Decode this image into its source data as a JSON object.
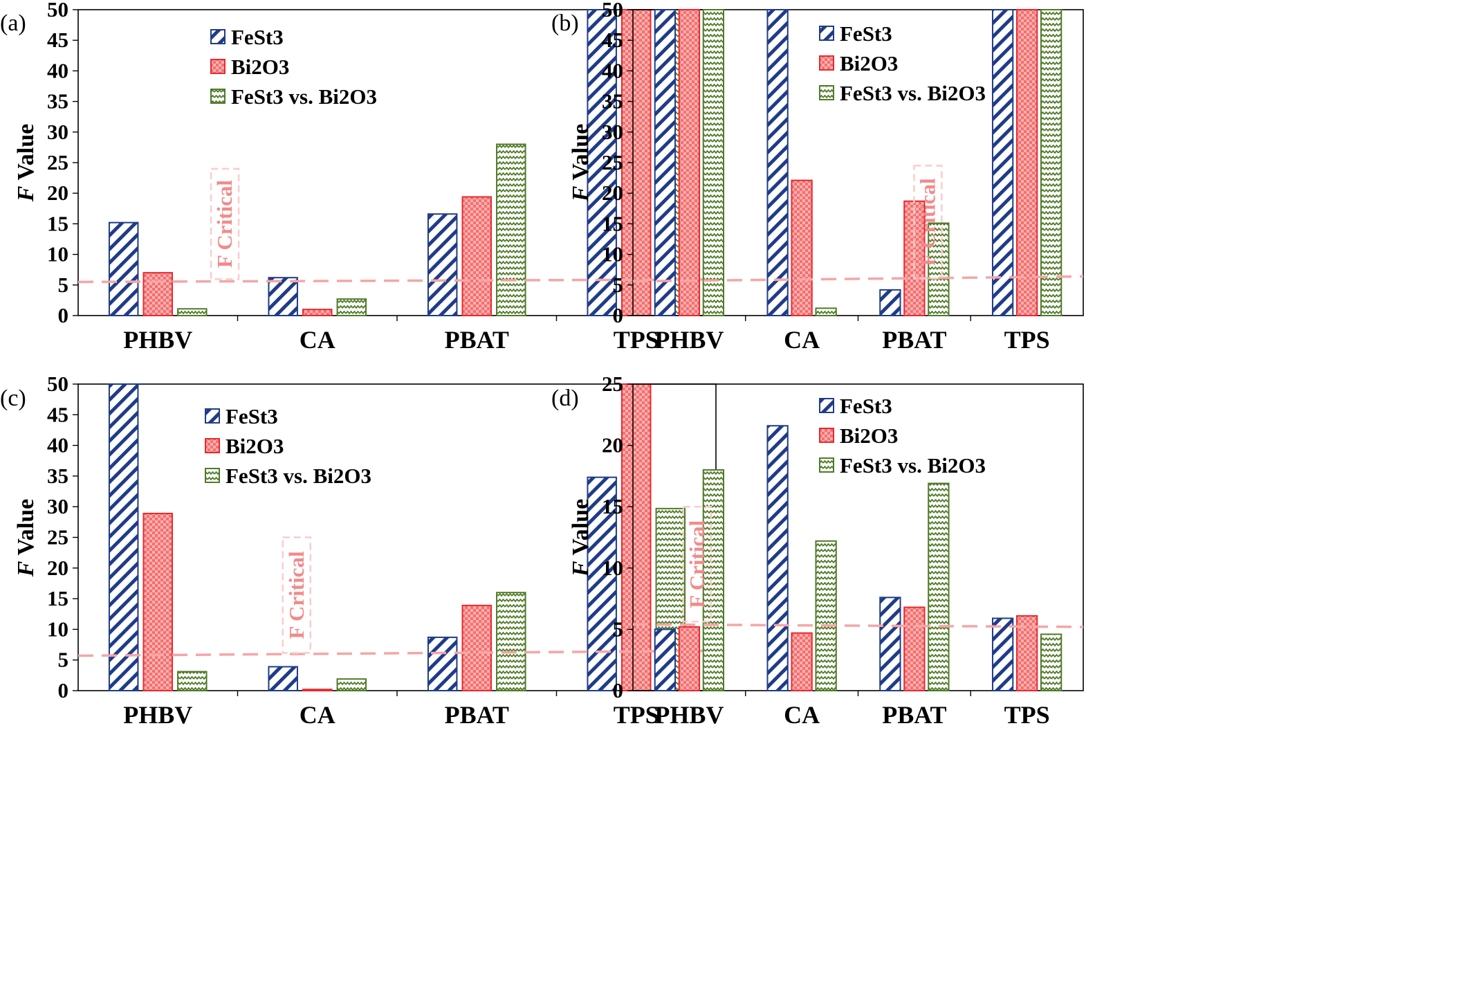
{
  "chart_data": [
    {
      "type": "bar",
      "panel_label": "(a)",
      "categories": [
        "PHBV",
        "CA",
        "PBAT",
        "TPS"
      ],
      "series": [
        {
          "name": "FeSt3",
          "values": [
            15.2,
            6.2,
            16.6,
            50
          ]
        },
        {
          "name": "Bi2O3",
          "values": [
            7.0,
            1.0,
            19.4,
            50
          ]
        },
        {
          "name": "FeSt3 vs. Bi2O3",
          "values": [
            1.1,
            2.7,
            28.0,
            50
          ]
        }
      ],
      "ylabel_italic": "F",
      "ylabel_rest": " Value",
      "ylim": [
        0,
        50
      ],
      "yticks": [
        0,
        5,
        10,
        15,
        20,
        25,
        30,
        35,
        40,
        45,
        50
      ],
      "legend": "top-left",
      "f_critical": {
        "label": "F Critical",
        "y_start": 5.5,
        "y_end": 5.9,
        "box_top": 24,
        "box_category": 0
      },
      "grid": false
    },
    {
      "type": "bar",
      "panel_label": "(b)",
      "categories": [
        "PHBV",
        "CA",
        "PBAT",
        "TPS"
      ],
      "series": [
        {
          "name": "FeSt3",
          "values": [
            50,
            50,
            4.2,
            50
          ]
        },
        {
          "name": "Bi2O3",
          "values": [
            50,
            22.1,
            18.7,
            50
          ]
        },
        {
          "name": "FeSt3 vs. Bi2O3",
          "values": [
            50,
            1.2,
            15.1,
            50
          ]
        }
      ],
      "ylabel_italic": "F",
      "ylabel_rest": " Value",
      "ylim": [
        0,
        50
      ],
      "yticks": [
        0,
        5,
        10,
        15,
        20,
        25,
        30,
        35,
        40,
        45,
        50
      ],
      "legend": "top-center",
      "f_critical": {
        "label": "F Critical",
        "y_start": 5.6,
        "y_end": 6.4,
        "box_top": 24.5,
        "box_category": 1.7
      },
      "grid": false
    },
    {
      "type": "bar",
      "panel_label": "(c)",
      "categories": [
        "PHBV",
        "CA",
        "PBAT",
        "TPS"
      ],
      "series": [
        {
          "name": "FeSt3",
          "values": [
            50,
            3.9,
            8.7,
            34.8
          ]
        },
        {
          "name": "Bi2O3",
          "values": [
            28.9,
            0.2,
            13.9,
            50
          ]
        },
        {
          "name": "FeSt3 vs. Bi2O3",
          "values": [
            3.1,
            1.9,
            16.0,
            29.7
          ]
        }
      ],
      "ylabel_italic": "F",
      "ylabel_rest": " Value",
      "ylim": [
        0,
        50
      ],
      "yticks": [
        0,
        5,
        10,
        15,
        20,
        25,
        30,
        35,
        40,
        45,
        50
      ],
      "legend": "top-center",
      "f_critical": {
        "label": "F Critical",
        "y_start": 5.7,
        "y_end": 6.5,
        "box_top": 25,
        "box_category": 0.45
      },
      "grid": false
    },
    {
      "type": "bar",
      "panel_label": "(d)",
      "categories": [
        "PHBV",
        "CA",
        "PBAT",
        "TPS"
      ],
      "series": [
        {
          "name": "FeSt3",
          "values": [
            5.0,
            21.6,
            7.6,
            5.9
          ]
        },
        {
          "name": "Bi2O3",
          "values": [
            5.2,
            4.7,
            6.8,
            6.1
          ]
        },
        {
          "name": "FeSt3 vs. Bi2O3",
          "values": [
            18.0,
            12.2,
            16.9,
            4.6
          ]
        }
      ],
      "ylabel_italic": "F",
      "ylabel_rest": " Value",
      "ylim": [
        0,
        25
      ],
      "yticks": [
        0,
        5,
        10,
        15,
        20,
        25
      ],
      "legend": "top-center",
      "f_critical": {
        "label": "F Critical",
        "y_start": 5.4,
        "y_end": 5.2,
        "box_top": 15,
        "box_category": -0.35
      },
      "grid": false
    }
  ],
  "series_styles": [
    {
      "stroke": "#1f3c88",
      "pattern": "diagonal-hatch",
      "fill": "#ffffff"
    },
    {
      "stroke": "#e8292f",
      "pattern": "red-checker",
      "fill": "#f46f6f"
    },
    {
      "stroke": "#4f7a28",
      "pattern": "green-zigzag",
      "fill": "#ffffff"
    }
  ],
  "colors": {
    "f_critical": "#f4a6a6",
    "axis": "#000000"
  }
}
